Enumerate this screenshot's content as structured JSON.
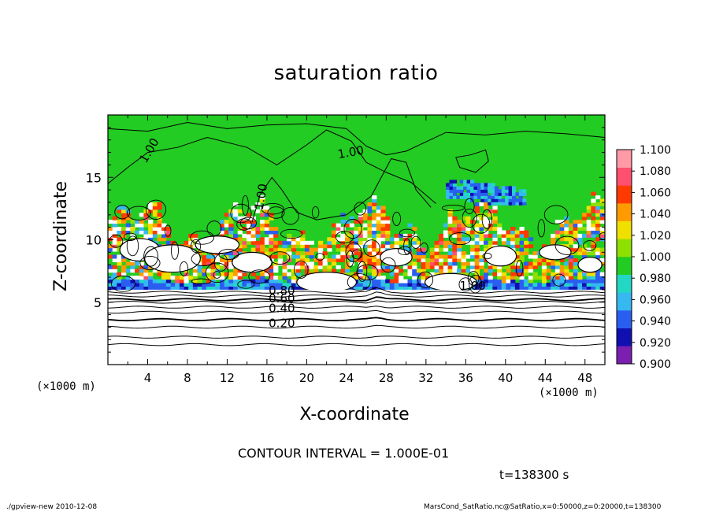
{
  "title": "saturation ratio",
  "xlabel": "X-coordinate",
  "ylabel": "Z-coordinate",
  "x_unit_label_left": "(×1000 m)",
  "x_unit_label_right": "(×1000 m)",
  "contour_interval_text": "CONTOUR INTERVAL = 1.000E-01",
  "time_label": "t=138300 s",
  "footer_left": "./gpview-new   2010-12-08",
  "footer_right": "MarsCond_SatRatio.nc@SatRatio,x=0:50000,z=0:20000,t=138300",
  "chart_data": {
    "type": "heatmap",
    "title": "saturation ratio",
    "xlabel": "X-coordinate",
    "ylabel": "Z-coordinate",
    "x_units": "(×1000 m)",
    "xlim": [
      0,
      50
    ],
    "ylim": [
      0,
      20
    ],
    "x_ticks": [
      4,
      8,
      12,
      16,
      20,
      24,
      28,
      32,
      36,
      40,
      44,
      48
    ],
    "y_ticks": [
      5,
      10,
      15
    ],
    "colorbar": {
      "levels": [
        0.9,
        0.92,
        0.94,
        0.96,
        0.98,
        1.0,
        1.02,
        1.04,
        1.06,
        1.08,
        1.1
      ],
      "labels": [
        "0.900",
        "0.920",
        "0.940",
        "0.960",
        "0.980",
        "1.000",
        "1.020",
        "1.040",
        "1.060",
        "1.080",
        "1.100"
      ],
      "colors": [
        "#7a1fb0",
        "#1010b0",
        "#2a5ef0",
        "#36b8f0",
        "#22d8c4",
        "#22cc22",
        "#8ee000",
        "#f0e000",
        "#ff9a00",
        "#ff3a00",
        "#ff5070",
        "#ff9aa6"
      ]
    },
    "background_color": "#22cc22",
    "contour_interval": 0.1,
    "contour_labels": [
      {
        "text": "1.00",
        "x": 4.5,
        "z": 17.0,
        "rotate": -60
      },
      {
        "text": "1.00",
        "x": 24.5,
        "z": 16.7,
        "rotate": -10
      },
      {
        "text": "1.00",
        "x": 15.8,
        "z": 13.4,
        "rotate": -80
      },
      {
        "text": "1.00",
        "x": 36.7,
        "z": 6.0,
        "rotate": 0
      },
      {
        "text": "0.80",
        "x": 17.5,
        "z": 5.6,
        "rotate": 0
      },
      {
        "text": "0.60",
        "x": 17.5,
        "z": 5.0,
        "rotate": 0
      },
      {
        "text": "0.40",
        "x": 17.5,
        "z": 4.2,
        "rotate": 0
      },
      {
        "text": "0.20",
        "x": 17.5,
        "z": 3.0,
        "rotate": 0
      }
    ],
    "layers": {
      "dry_layer_top_z": 6.0,
      "dry_contour_z": [
        1.6,
        2.2,
        3.0,
        3.6,
        4.2,
        4.6,
        5.0,
        5.2,
        5.5,
        5.8
      ],
      "white_supersaturation_band_z": [
        6.5,
        11.5
      ],
      "blue_subsaturation_patch": {
        "x": [
          34,
          42
        ],
        "z": [
          12.8,
          14.8
        ]
      }
    }
  }
}
